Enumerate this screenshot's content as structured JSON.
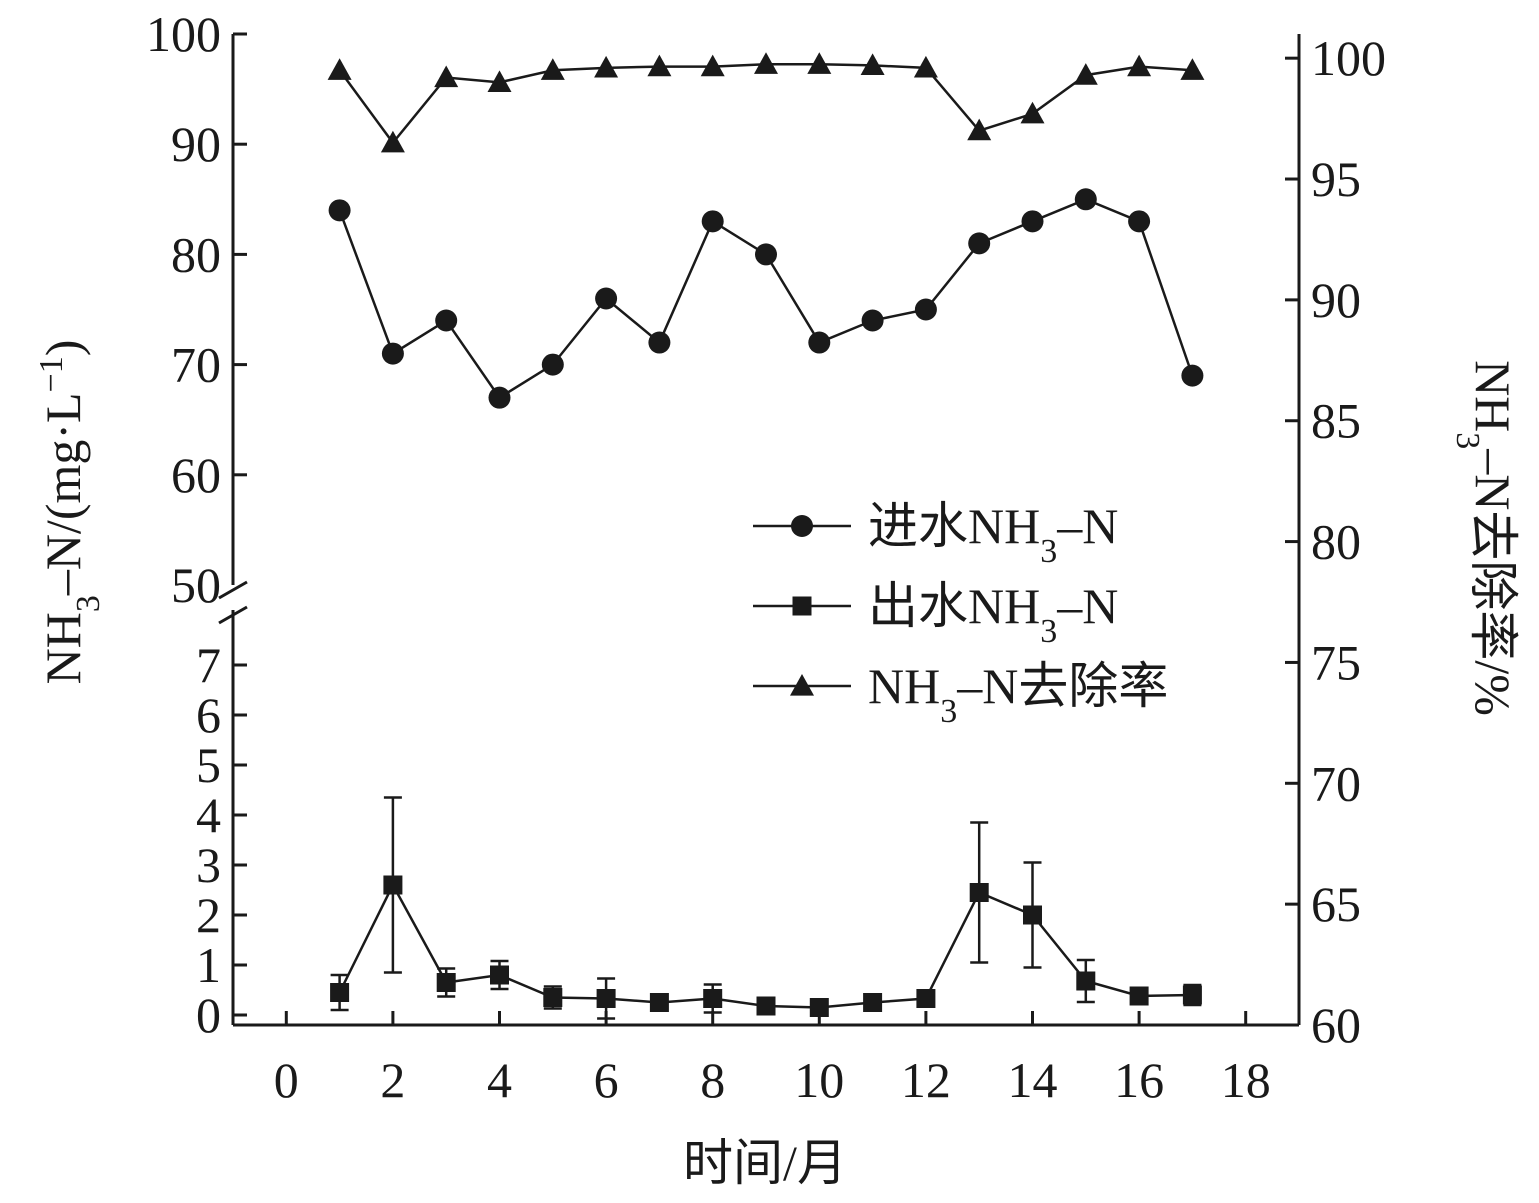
{
  "chart_data": {
    "type": "line",
    "xlabel": "时间/月",
    "ylabel_left": "NH3–N/(mg·L−1)",
    "ylabel_left_parts": {
      "base": "NH",
      "sub": "3",
      "mid": "–N/(mg·L",
      "sup": "−1",
      "end": ")"
    },
    "ylabel_right": "NH3–N去除率/%",
    "ylabel_right_parts": {
      "base": "NH",
      "sub": "3",
      "end": "–N去除率/%"
    },
    "xlim": [
      -1,
      19
    ],
    "x_ticks": [
      "0",
      "2",
      "4",
      "6",
      "8",
      "10",
      "12",
      "14",
      "16",
      "18"
    ],
    "left_axis_broken": true,
    "ylim_left_lower": [
      -0.2,
      7.5
    ],
    "y_ticks_left_lower": [
      "0",
      "1",
      "2",
      "3",
      "4",
      "5",
      "6",
      "7"
    ],
    "ylim_left_upper": [
      50,
      100
    ],
    "y_ticks_left_upper": [
      "50",
      "60",
      "70",
      "80",
      "90",
      "100"
    ],
    "ylim_right": [
      60,
      101
    ],
    "y_ticks_right": [
      "60",
      "65",
      "70",
      "75",
      "80",
      "85",
      "90",
      "95",
      "100"
    ],
    "legend_placement": "center-right",
    "series": [
      {
        "name": "进水NH3–N",
        "name_parts": {
          "base": "进水NH",
          "sub": "3",
          "end": "–N"
        },
        "marker": "circle",
        "axis": "left",
        "x": [
          1,
          2,
          3,
          4,
          5,
          6,
          7,
          8,
          9,
          10,
          11,
          12,
          13,
          14,
          15,
          16,
          17
        ],
        "values": [
          84,
          71,
          74,
          67,
          70,
          76,
          72,
          83,
          80,
          72,
          74,
          75,
          81,
          83,
          85,
          83,
          69
        ]
      },
      {
        "name": "出水NH3–N",
        "name_parts": {
          "base": "出水NH",
          "sub": "3",
          "end": "–N"
        },
        "marker": "square",
        "axis": "left",
        "x": [
          1,
          2,
          3,
          4,
          5,
          6,
          7,
          8,
          9,
          10,
          11,
          12,
          13,
          14,
          15,
          16,
          17
        ],
        "values": [
          0.45,
          2.6,
          0.65,
          0.8,
          0.35,
          0.33,
          0.25,
          0.33,
          0.18,
          0.15,
          0.25,
          0.33,
          2.45,
          2.0,
          0.68,
          0.38,
          0.4
        ],
        "errors": [
          0.35,
          1.75,
          0.28,
          0.28,
          0.22,
          0.4,
          0.0,
          0.28,
          0.0,
          0.0,
          0.0,
          0.0,
          1.4,
          1.05,
          0.42,
          0.0,
          0.2
        ]
      },
      {
        "name": "NH3–N去除率",
        "name_parts": {
          "base": "NH",
          "sub": "3",
          "end": "–N去除率"
        },
        "marker": "triangle",
        "axis": "right",
        "x": [
          1,
          2,
          3,
          4,
          5,
          6,
          7,
          8,
          9,
          10,
          11,
          12,
          13,
          14,
          15,
          16,
          17
        ],
        "values": [
          99.5,
          96.5,
          99.2,
          99.0,
          99.5,
          99.6,
          99.65,
          99.65,
          99.75,
          99.75,
          99.7,
          99.6,
          97.0,
          97.7,
          99.3,
          99.65,
          99.5
        ]
      }
    ]
  }
}
